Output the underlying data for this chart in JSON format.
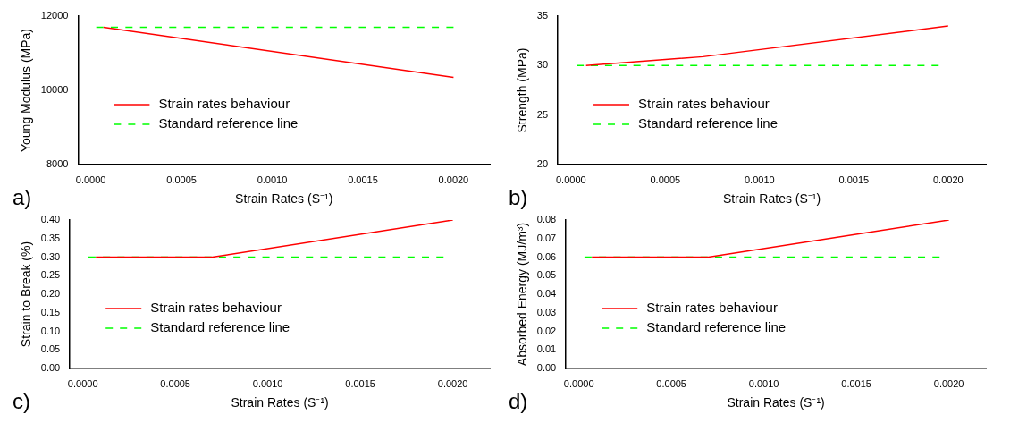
{
  "chart_data": [
    {
      "type": "line",
      "xlabel": "Strain Rates (S⁻¹)",
      "ylabel": "Young Modulus (MPa)",
      "annotations": [
        "a)"
      ],
      "xlim": [
        -7e-05,
        0.0022
      ],
      "xticks": [
        {
          "value": 0,
          "label": "0.0000"
        },
        {
          "value": 0.0005,
          "label": "0.0005"
        },
        {
          "value": 0.001,
          "label": "0.0010"
        },
        {
          "value": 0.0015,
          "label": "0.0015"
        },
        {
          "value": 0.002,
          "label": "0.0020"
        }
      ],
      "ylim": [
        8000,
        12000
      ],
      "yticks": [
        8000,
        10000,
        12000
      ],
      "grid": false,
      "legend": "bottom left",
      "marker": "none",
      "series": [
        {
          "name": "Strain rates behaviour",
          "color": "#ff0000",
          "line_style": "solid",
          "x": [
            7e-05,
            0.002
          ],
          "values": [
            11700,
            10350
          ]
        },
        {
          "name": "Standard reference line",
          "color": "#00ff00",
          "line_style": "dashed",
          "x": [
            3e-05,
            0.002
          ],
          "values": [
            11700,
            11700
          ]
        }
      ]
    },
    {
      "type": "line",
      "xlabel": "Strain Rates (S⁻¹)",
      "ylabel": "Strength (MPa)",
      "annotations": [
        "b)"
      ],
      "xlim": [
        -7e-05,
        0.0022
      ],
      "xticks": [
        {
          "value": 0,
          "label": "0.0000"
        },
        {
          "value": 0.0005,
          "label": "0.0005"
        },
        {
          "value": 0.001,
          "label": "0.0010"
        },
        {
          "value": 0.0015,
          "label": "0.0015"
        },
        {
          "value": 0.002,
          "label": "0.0020"
        }
      ],
      "ylim": [
        20,
        35
      ],
      "yticks": [
        20,
        25,
        30,
        35
      ],
      "grid": false,
      "legend": "bottom left",
      "marker": "none",
      "series": [
        {
          "name": "Strain rates behaviour",
          "color": "#ff0000",
          "line_style": "solid",
          "x": [
            8e-05,
            0.0007,
            0.002
          ],
          "values": [
            30,
            30.9,
            34
          ]
        },
        {
          "name": "Standard reference line",
          "color": "#00ff00",
          "line_style": "dashed",
          "x": [
            3e-05,
            0.00195
          ],
          "values": [
            30,
            30
          ]
        }
      ]
    },
    {
      "type": "line",
      "xlabel": "Strain Rates (S⁻¹)",
      "ylabel": "Strain to Break (%)",
      "annotations": [
        "c)"
      ],
      "xlim": [
        -7e-05,
        0.0022
      ],
      "xticks": [
        {
          "value": 0,
          "label": "0.0000"
        },
        {
          "value": 0.0005,
          "label": "0.0005"
        },
        {
          "value": 0.001,
          "label": "0.0010"
        },
        {
          "value": 0.0015,
          "label": "0.0015"
        },
        {
          "value": 0.002,
          "label": "0.0020"
        }
      ],
      "ylim": [
        0,
        0.4
      ],
      "yticks": [
        {
          "value": 0,
          "label": "0.00"
        },
        0.05,
        {
          "value": 0.1,
          "label": "0.10"
        },
        0.15,
        {
          "value": 0.2,
          "label": "0.20"
        },
        0.25,
        {
          "value": 0.3,
          "label": "0.30"
        },
        0.35,
        {
          "value": 0.4,
          "label": "0.40"
        }
      ],
      "grid": false,
      "legend": "bottom left",
      "marker": "none",
      "series": [
        {
          "name": "Strain rates behaviour",
          "color": "#ff0000",
          "line_style": "solid",
          "x": [
            7e-05,
            0.0007,
            0.002
          ],
          "values": [
            0.3,
            0.3,
            0.4
          ]
        },
        {
          "name": "Standard reference line",
          "color": "#00ff00",
          "line_style": "dashed",
          "x": [
            3e-05,
            0.00195
          ],
          "values": [
            0.3,
            0.3
          ]
        }
      ]
    },
    {
      "type": "line",
      "xlabel": "Strain Rates (S⁻¹)",
      "ylabel": "Absorbed Energy (MJ/m³)",
      "annotations": [
        "d)"
      ],
      "xlim": [
        -7e-05,
        0.0022
      ],
      "xticks": [
        {
          "value": 0,
          "label": "0.0000"
        },
        {
          "value": 0.0005,
          "label": "0.0005"
        },
        {
          "value": 0.001,
          "label": "0.0010"
        },
        {
          "value": 0.0015,
          "label": "0.0015"
        },
        {
          "value": 0.002,
          "label": "0.0020"
        }
      ],
      "ylim": [
        0,
        0.08
      ],
      "yticks": [
        {
          "value": 0,
          "label": "0.00"
        },
        0.01,
        0.02,
        0.03,
        0.04,
        0.05,
        0.06,
        0.07,
        0.08
      ],
      "grid": false,
      "legend": "bottom left",
      "marker": "none",
      "series": [
        {
          "name": "Strain rates behaviour",
          "color": "#ff0000",
          "line_style": "solid",
          "x": [
            7e-05,
            0.0007,
            0.002
          ],
          "values": [
            0.06,
            0.06,
            0.08
          ]
        },
        {
          "name": "Standard reference line",
          "color": "#00ff00",
          "line_style": "dashed",
          "x": [
            3e-05,
            0.00195
          ],
          "values": [
            0.06,
            0.06
          ]
        }
      ]
    }
  ]
}
